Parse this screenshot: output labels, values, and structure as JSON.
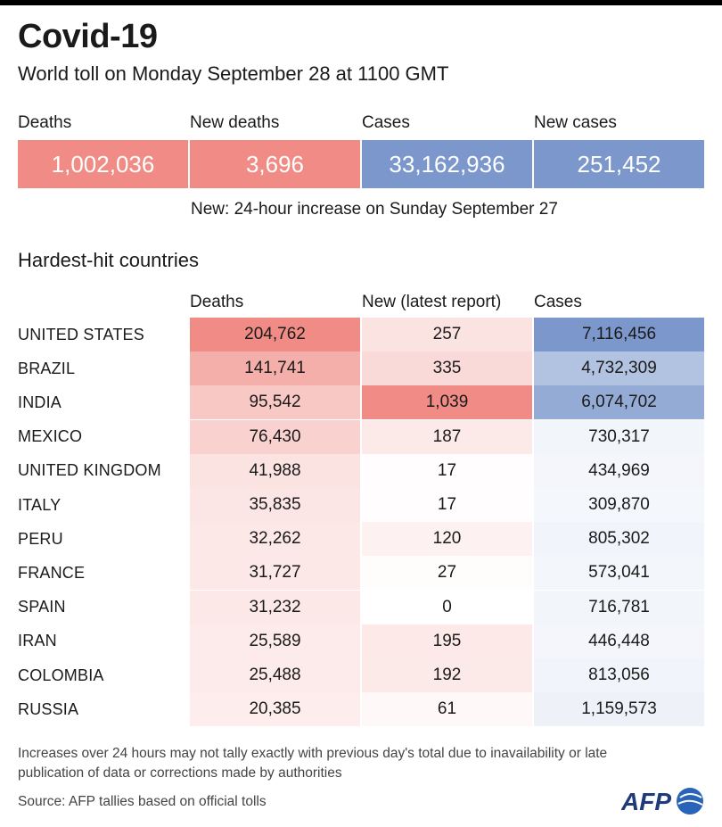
{
  "header": {
    "title": "Covid-19",
    "subtitle": "World toll on Monday September 28 at 1100 GMT"
  },
  "summary": [
    {
      "label": "Deaths",
      "value": "1,002,036",
      "color": "#f08c85"
    },
    {
      "label": "New deaths",
      "value": "3,696",
      "color": "#f08c85"
    },
    {
      "label": "Cases",
      "value": "33,162,936",
      "color": "#7b97cc"
    },
    {
      "label": "New cases",
      "value": "251,452",
      "color": "#7b97cc"
    }
  ],
  "note": "New: 24-hour increase on Sunday September 27",
  "section_title": "Hardest-hit countries",
  "chart_data": {
    "type": "table",
    "columns": [
      "Deaths",
      "New (latest report)",
      "Cases"
    ],
    "rows": [
      {
        "country": "UNITED STATES",
        "deaths": 204762,
        "new": 257,
        "cases": 7116456
      },
      {
        "country": "BRAZIL",
        "deaths": 141741,
        "new": 335,
        "cases": 4732309
      },
      {
        "country": "INDIA",
        "deaths": 95542,
        "new": 1039,
        "cases": 6074702
      },
      {
        "country": "MEXICO",
        "deaths": 76430,
        "new": 187,
        "cases": 730317
      },
      {
        "country": "UNITED KINGDOM",
        "deaths": 41988,
        "new": 17,
        "cases": 434969
      },
      {
        "country": "ITALY",
        "deaths": 35835,
        "new": 17,
        "cases": 309870
      },
      {
        "country": "PERU",
        "deaths": 32262,
        "new": 120,
        "cases": 805302
      },
      {
        "country": "FRANCE",
        "deaths": 31727,
        "new": 27,
        "cases": 573041
      },
      {
        "country": "SPAIN",
        "deaths": 31232,
        "new": 0,
        "cases": 716781
      },
      {
        "country": "IRAN",
        "deaths": 25589,
        "new": 195,
        "cases": 446448
      },
      {
        "country": "COLOMBIA",
        "deaths": 25488,
        "new": 192,
        "cases": 813056
      },
      {
        "country": "RUSSIA",
        "deaths": 20385,
        "new": 61,
        "cases": 1159573
      }
    ],
    "colors": {
      "deaths": "#f08c85",
      "new": "#f08c85",
      "cases": "#7b97cc"
    }
  },
  "footnote": "Increases over 24 hours may not tally exactly with previous day's total due to inavailability or late publication of data or corrections made by authorities",
  "source": "Source: AFP tallies based on official tolls",
  "logo": {
    "text": "AFP",
    "icon": "afp-logo-icon"
  }
}
